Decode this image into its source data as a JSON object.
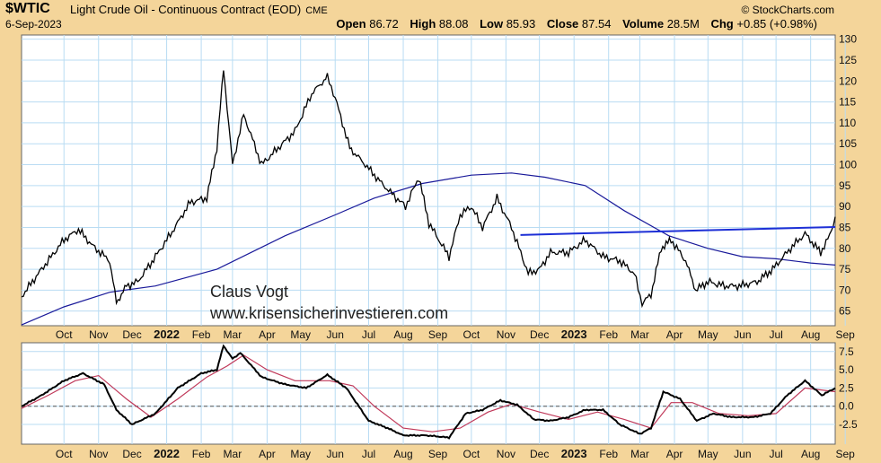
{
  "header": {
    "ticker": "$WTIC",
    "description": "Light Crude Oil - Continuous Contract (EOD)",
    "exchange": "CME",
    "copyright": "© StockCharts.com",
    "date": "6-Sep-2023",
    "open_label": "Open",
    "open": "86.72",
    "high_label": "High",
    "high": "88.08",
    "low_label": "Low",
    "low": "85.93",
    "close_label": "Close",
    "close": "87.54",
    "volume_label": "Volume",
    "volume": "28.5M",
    "chg_label": "Chg",
    "chg": "+0.85 (+0.98%)"
  },
  "watermark": {
    "line1": "Claus Vogt",
    "line2": "www.krisensicherinvestieren.com"
  },
  "colors": {
    "background": "#f4d59a",
    "plot_bg": "#ffffff",
    "grid": "#b9dcf3",
    "price": "#000000",
    "ma": "#1a1a9a",
    "trendline": "#1d2fd6",
    "signal": "#c0395a",
    "zero_line": "#555555"
  },
  "chart_data": [
    {
      "type": "line",
      "name": "price",
      "x_labels": [
        "Oct",
        "Nov",
        "Dec",
        "2022",
        "Feb",
        "Mar",
        "Apr",
        "May",
        "Jun",
        "Jul",
        "Aug",
        "Sep",
        "Oct",
        "Nov",
        "Dec",
        "2023",
        "Feb",
        "Mar",
        "Apr",
        "May",
        "Jun",
        "Jul",
        "Aug",
        "Sep"
      ],
      "x_bold": [
        "2022",
        "2023"
      ],
      "y_ticks": [
        65,
        70,
        75,
        80,
        85,
        90,
        95,
        100,
        105,
        110,
        115,
        120,
        125,
        130
      ],
      "ylim": [
        61.5,
        131
      ],
      "price_series": {
        "x": [
          "2021-09-07",
          "2021-09-25",
          "2021-10-15",
          "2021-10-28",
          "2021-11-10",
          "2021-11-25",
          "2021-12-01",
          "2021-12-10",
          "2021-12-20",
          "2022-01-05",
          "2022-01-20",
          "2022-02-05",
          "2022-02-20",
          "2022-03-01",
          "2022-03-07",
          "2022-03-15",
          "2022-03-25",
          "2022-04-10",
          "2022-04-25",
          "2022-05-10",
          "2022-05-25",
          "2022-06-08",
          "2022-06-15",
          "2022-06-28",
          "2022-07-12",
          "2022-07-25",
          "2022-08-05",
          "2022-08-17",
          "2022-08-29",
          "2022-09-07",
          "2022-09-25",
          "2022-10-05",
          "2022-10-15",
          "2022-10-25",
          "2022-11-07",
          "2022-11-20",
          "2022-12-05",
          "2022-12-15",
          "2022-12-25",
          "2023-01-10",
          "2023-01-25",
          "2023-02-10",
          "2023-02-25",
          "2023-03-10",
          "2023-03-17",
          "2023-03-25",
          "2023-04-03",
          "2023-04-12",
          "2023-04-25",
          "2023-05-04",
          "2023-05-15",
          "2023-05-30",
          "2023-06-12",
          "2023-06-28",
          "2023-07-12",
          "2023-07-28",
          "2023-08-10",
          "2023-08-24",
          "2023-09-01",
          "2023-09-06"
        ],
        "close": [
          68.5,
          75,
          82,
          84.5,
          80.5,
          77,
          67,
          71,
          72,
          78,
          84,
          91,
          92,
          104,
          123,
          100,
          112,
          100,
          104,
          108,
          117,
          121,
          116,
          104,
          100,
          96,
          93,
          90,
          97,
          86,
          78,
          88,
          90,
          85,
          92,
          85,
          74,
          75,
          79,
          79,
          82,
          78,
          77,
          74,
          66.8,
          69,
          80,
          82,
          77,
          70,
          72,
          71,
          71,
          72,
          75,
          80,
          83.5,
          79,
          83,
          87.54
        ]
      },
      "moving_average": {
        "x": [
          "2021-09-07",
          "2021-10-15",
          "2021-11-25",
          "2022-01-05",
          "2022-03-01",
          "2022-05-01",
          "2022-06-15",
          "2022-07-20",
          "2022-09-01",
          "2022-10-15",
          "2022-11-20",
          "2022-12-20",
          "2023-01-25",
          "2023-03-01",
          "2023-04-10",
          "2023-05-15",
          "2023-06-15",
          "2023-07-15",
          "2023-08-15",
          "2023-09-06"
        ],
        "values": [
          61.7,
          66,
          69.5,
          71,
          75,
          83,
          88,
          92,
          95.5,
          97.5,
          98,
          97,
          95,
          89,
          83,
          80,
          78,
          77.5,
          76.5,
          76
        ]
      },
      "trendline": {
        "x": [
          "2022-11-28",
          "2023-09-06"
        ],
        "values": [
          83.2,
          85.1
        ]
      }
    },
    {
      "type": "line",
      "name": "oscillator",
      "y_ticks": [
        -2.5,
        0.0,
        2.5,
        5.0,
        7.5
      ],
      "ylim": [
        -5.2,
        8.7
      ],
      "main_series": {
        "x": [
          "2021-09-07",
          "2021-09-25",
          "2021-10-15",
          "2021-11-01",
          "2021-11-20",
          "2021-12-01",
          "2021-12-15",
          "2022-01-05",
          "2022-01-25",
          "2022-02-15",
          "2022-03-01",
          "2022-03-07",
          "2022-03-15",
          "2022-03-22",
          "2022-04-10",
          "2022-05-01",
          "2022-05-20",
          "2022-06-08",
          "2022-06-25",
          "2022-07-15",
          "2022-08-01",
          "2022-08-15",
          "2022-09-05",
          "2022-09-25",
          "2022-10-10",
          "2022-10-25",
          "2022-11-10",
          "2022-11-25",
          "2022-12-10",
          "2022-12-25",
          "2023-01-10",
          "2023-01-25",
          "2023-02-10",
          "2023-02-25",
          "2023-03-15",
          "2023-03-25",
          "2023-04-05",
          "2023-04-20",
          "2023-05-05",
          "2023-05-20",
          "2023-06-05",
          "2023-06-25",
          "2023-07-10",
          "2023-07-25",
          "2023-08-10",
          "2023-08-25",
          "2023-09-06"
        ],
        "values": [
          0.0,
          1.5,
          3.5,
          4.5,
          3.0,
          -0.5,
          -2.5,
          -1.0,
          2.5,
          4.5,
          5.0,
          8.3,
          6.5,
          7.3,
          4.0,
          3.0,
          2.5,
          4.3,
          2.5,
          -2.0,
          -3.0,
          -4.0,
          -4.0,
          -4.3,
          -1.0,
          -0.5,
          0.8,
          0.2,
          -1.8,
          -2.0,
          -1.5,
          -0.5,
          -0.5,
          -2.5,
          -3.8,
          -3.0,
          2.0,
          1.0,
          -2.0,
          -1.0,
          -1.5,
          -1.5,
          -1.0,
          1.5,
          3.5,
          1.5,
          2.5
        ]
      },
      "signal_series": {
        "x": [
          "2021-09-07",
          "2021-10-01",
          "2021-10-25",
          "2021-11-15",
          "2021-12-10",
          "2022-01-01",
          "2022-01-25",
          "2022-02-20",
          "2022-03-10",
          "2022-03-25",
          "2022-04-15",
          "2022-05-10",
          "2022-06-10",
          "2022-07-01",
          "2022-07-20",
          "2022-08-15",
          "2022-09-10",
          "2022-10-05",
          "2022-10-30",
          "2022-11-20",
          "2022-12-15",
          "2023-01-10",
          "2023-02-05",
          "2023-03-01",
          "2023-03-25",
          "2023-04-12",
          "2023-05-01",
          "2023-05-25",
          "2023-06-20",
          "2023-07-15",
          "2023-08-10",
          "2023-09-06"
        ],
        "values": [
          -0.3,
          1.5,
          3.5,
          4.2,
          1.0,
          -1.5,
          1.0,
          4.0,
          5.5,
          7.0,
          5.0,
          3.5,
          3.5,
          2.8,
          0.0,
          -3.0,
          -3.5,
          -3.0,
          -0.8,
          0.3,
          -0.8,
          -1.8,
          -0.8,
          -1.8,
          -3.0,
          0.5,
          0.5,
          -1.0,
          -1.3,
          -1.0,
          2.5,
          2.0
        ]
      },
      "zero_line": 0
    }
  ]
}
